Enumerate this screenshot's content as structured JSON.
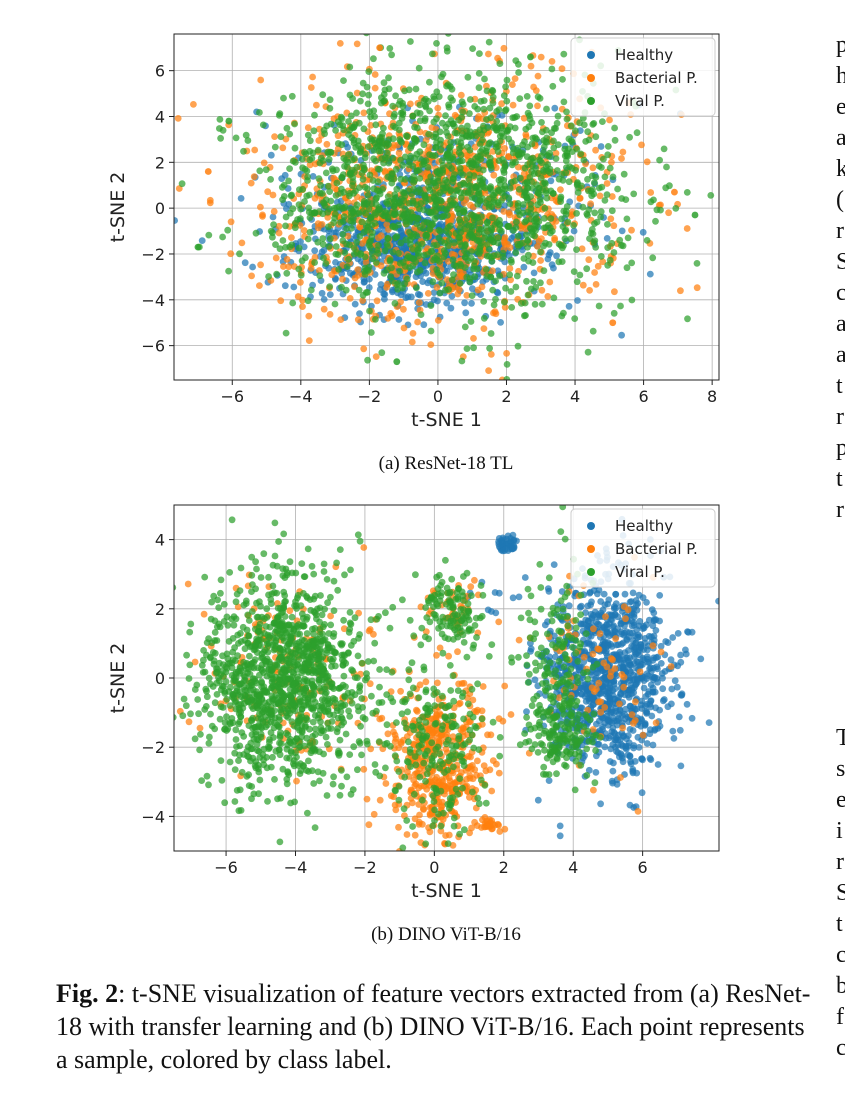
{
  "figure": {
    "caption_label": "Fig. 2",
    "caption_text": ": t-SNE visualization of feature vectors extracted from (a) ResNet-18 with transfer learning and (b) DINO ViT-B/16. Each point represents a sample, colored by class label.",
    "subcaption_a": "(a) ResNet-18 TL",
    "subcaption_b": "(b) DINO ViT-B/16"
  },
  "right_column_fragments_top": [
    "p",
    "h",
    "e",
    "a",
    "k",
    "(",
    "r",
    "S",
    "c",
    "a",
    "a",
    "t",
    "r",
    "p",
    "t",
    "r"
  ],
  "right_column_fragments_bottom": [
    "T",
    "s",
    "e",
    "i",
    "r",
    "S",
    "t",
    "c",
    "b",
    "f",
    "c"
  ],
  "chart_data": [
    {
      "type": "scatter",
      "title": "",
      "xlabel": "t-SNE 1",
      "ylabel": "t-SNE 2",
      "xlim": [
        -7.7,
        8.2
      ],
      "ylim": [
        -7.5,
        7.6
      ],
      "xticks": [
        -6,
        -4,
        -2,
        0,
        2,
        4,
        6,
        8
      ],
      "yticks": [
        -6,
        -4,
        -2,
        0,
        2,
        4,
        6
      ],
      "grid": true,
      "legend": "top-right",
      "series": [
        {
          "name": "Healthy",
          "color": "#1f77b4",
          "clusters": [
            {
              "cx": -0.8,
              "cy": -1.8,
              "sx": 1.6,
              "sy": 1.3,
              "n": 700
            },
            {
              "cx": 0.3,
              "cy": 0.5,
              "sx": 2.5,
              "sy": 2.0,
              "n": 300
            }
          ]
        },
        {
          "name": "Bacterial P.",
          "color": "#ff7f0e",
          "clusters": [
            {
              "cx": 0.0,
              "cy": 0.3,
              "sx": 2.6,
              "sy": 2.6,
              "n": 950
            }
          ]
        },
        {
          "name": "Viral P.",
          "color": "#2ca02c",
          "clusters": [
            {
              "cx": 0.3,
              "cy": 0.8,
              "sx": 2.6,
              "sy": 2.5,
              "n": 1500
            }
          ]
        }
      ],
      "outliers": [
        {
          "series": "Viral P.",
          "x": -7.0,
          "y": -1.7
        },
        {
          "series": "Viral P.",
          "x": -6.1,
          "y": 3.8
        },
        {
          "series": "Bacterial P.",
          "x": -6.7,
          "y": 1.6
        },
        {
          "series": "Viral P.",
          "x": 7.5,
          "y": -0.3
        },
        {
          "series": "Bacterial P.",
          "x": 6.9,
          "y": 0.7
        },
        {
          "series": "Bacterial P.",
          "x": -1.7,
          "y": 7.0
        },
        {
          "series": "Viral P.",
          "x": -1.2,
          "y": -6.7
        },
        {
          "series": "Viral P.",
          "x": 2.7,
          "y": 6.6
        },
        {
          "series": "Bacterial P.",
          "x": 5.1,
          "y": -5.0
        }
      ]
    },
    {
      "type": "scatter",
      "title": "",
      "xlabel": "t-SNE 1",
      "ylabel": "t-SNE 2",
      "xlim": [
        -7.5,
        8.2
      ],
      "ylim": [
        -5.0,
        5.0
      ],
      "xticks": [
        -6,
        -4,
        -2,
        0,
        2,
        4,
        6
      ],
      "yticks": [
        -4,
        -2,
        0,
        2,
        4
      ],
      "grid": true,
      "legend": "top-right",
      "series": [
        {
          "name": "Healthy",
          "color": "#1f77b4",
          "clusters": [
            {
              "cx": 5.0,
              "cy": 0.1,
              "sx": 0.95,
              "sy": 1.35,
              "n": 1000
            },
            {
              "cx": 2.1,
              "cy": 3.85,
              "sx": 0.15,
              "sy": 0.15,
              "n": 40
            },
            {
              "cx": 1.8,
              "cy": 2.5,
              "sx": 0.5,
              "sy": 0.5,
              "n": 10
            }
          ]
        },
        {
          "name": "Bacterial P.",
          "color": "#ff7f0e",
          "clusters": [
            {
              "cx": 0.1,
              "cy": -2.4,
              "sx": 0.7,
              "sy": 1.2,
              "n": 450
            },
            {
              "cx": -4.3,
              "cy": 0.2,
              "sx": 1.2,
              "sy": 1.4,
              "n": 150
            },
            {
              "cx": 1.6,
              "cy": -4.3,
              "sx": 0.15,
              "sy": 0.12,
              "n": 25
            },
            {
              "cx": 0.5,
              "cy": 1.9,
              "sx": 0.5,
              "sy": 0.6,
              "n": 40
            },
            {
              "cx": 4.8,
              "cy": 0.5,
              "sx": 1.0,
              "sy": 1.3,
              "n": 80
            }
          ]
        },
        {
          "name": "Viral P.",
          "color": "#2ca02c",
          "clusters": [
            {
              "cx": -4.3,
              "cy": -0.1,
              "sx": 1.2,
              "sy": 1.45,
              "n": 1200
            },
            {
              "cx": 0.5,
              "cy": 1.9,
              "sx": 0.5,
              "sy": 0.6,
              "n": 120
            },
            {
              "cx": 0.1,
              "cy": -2.0,
              "sx": 0.75,
              "sy": 1.2,
              "n": 200
            },
            {
              "cx": 3.6,
              "cy": -1.6,
              "sx": 0.45,
              "sy": 0.7,
              "n": 160
            },
            {
              "cx": 3.5,
              "cy": 0.8,
              "sx": 0.6,
              "sy": 1.2,
              "n": 120
            }
          ]
        }
      ],
      "outliers": []
    }
  ]
}
